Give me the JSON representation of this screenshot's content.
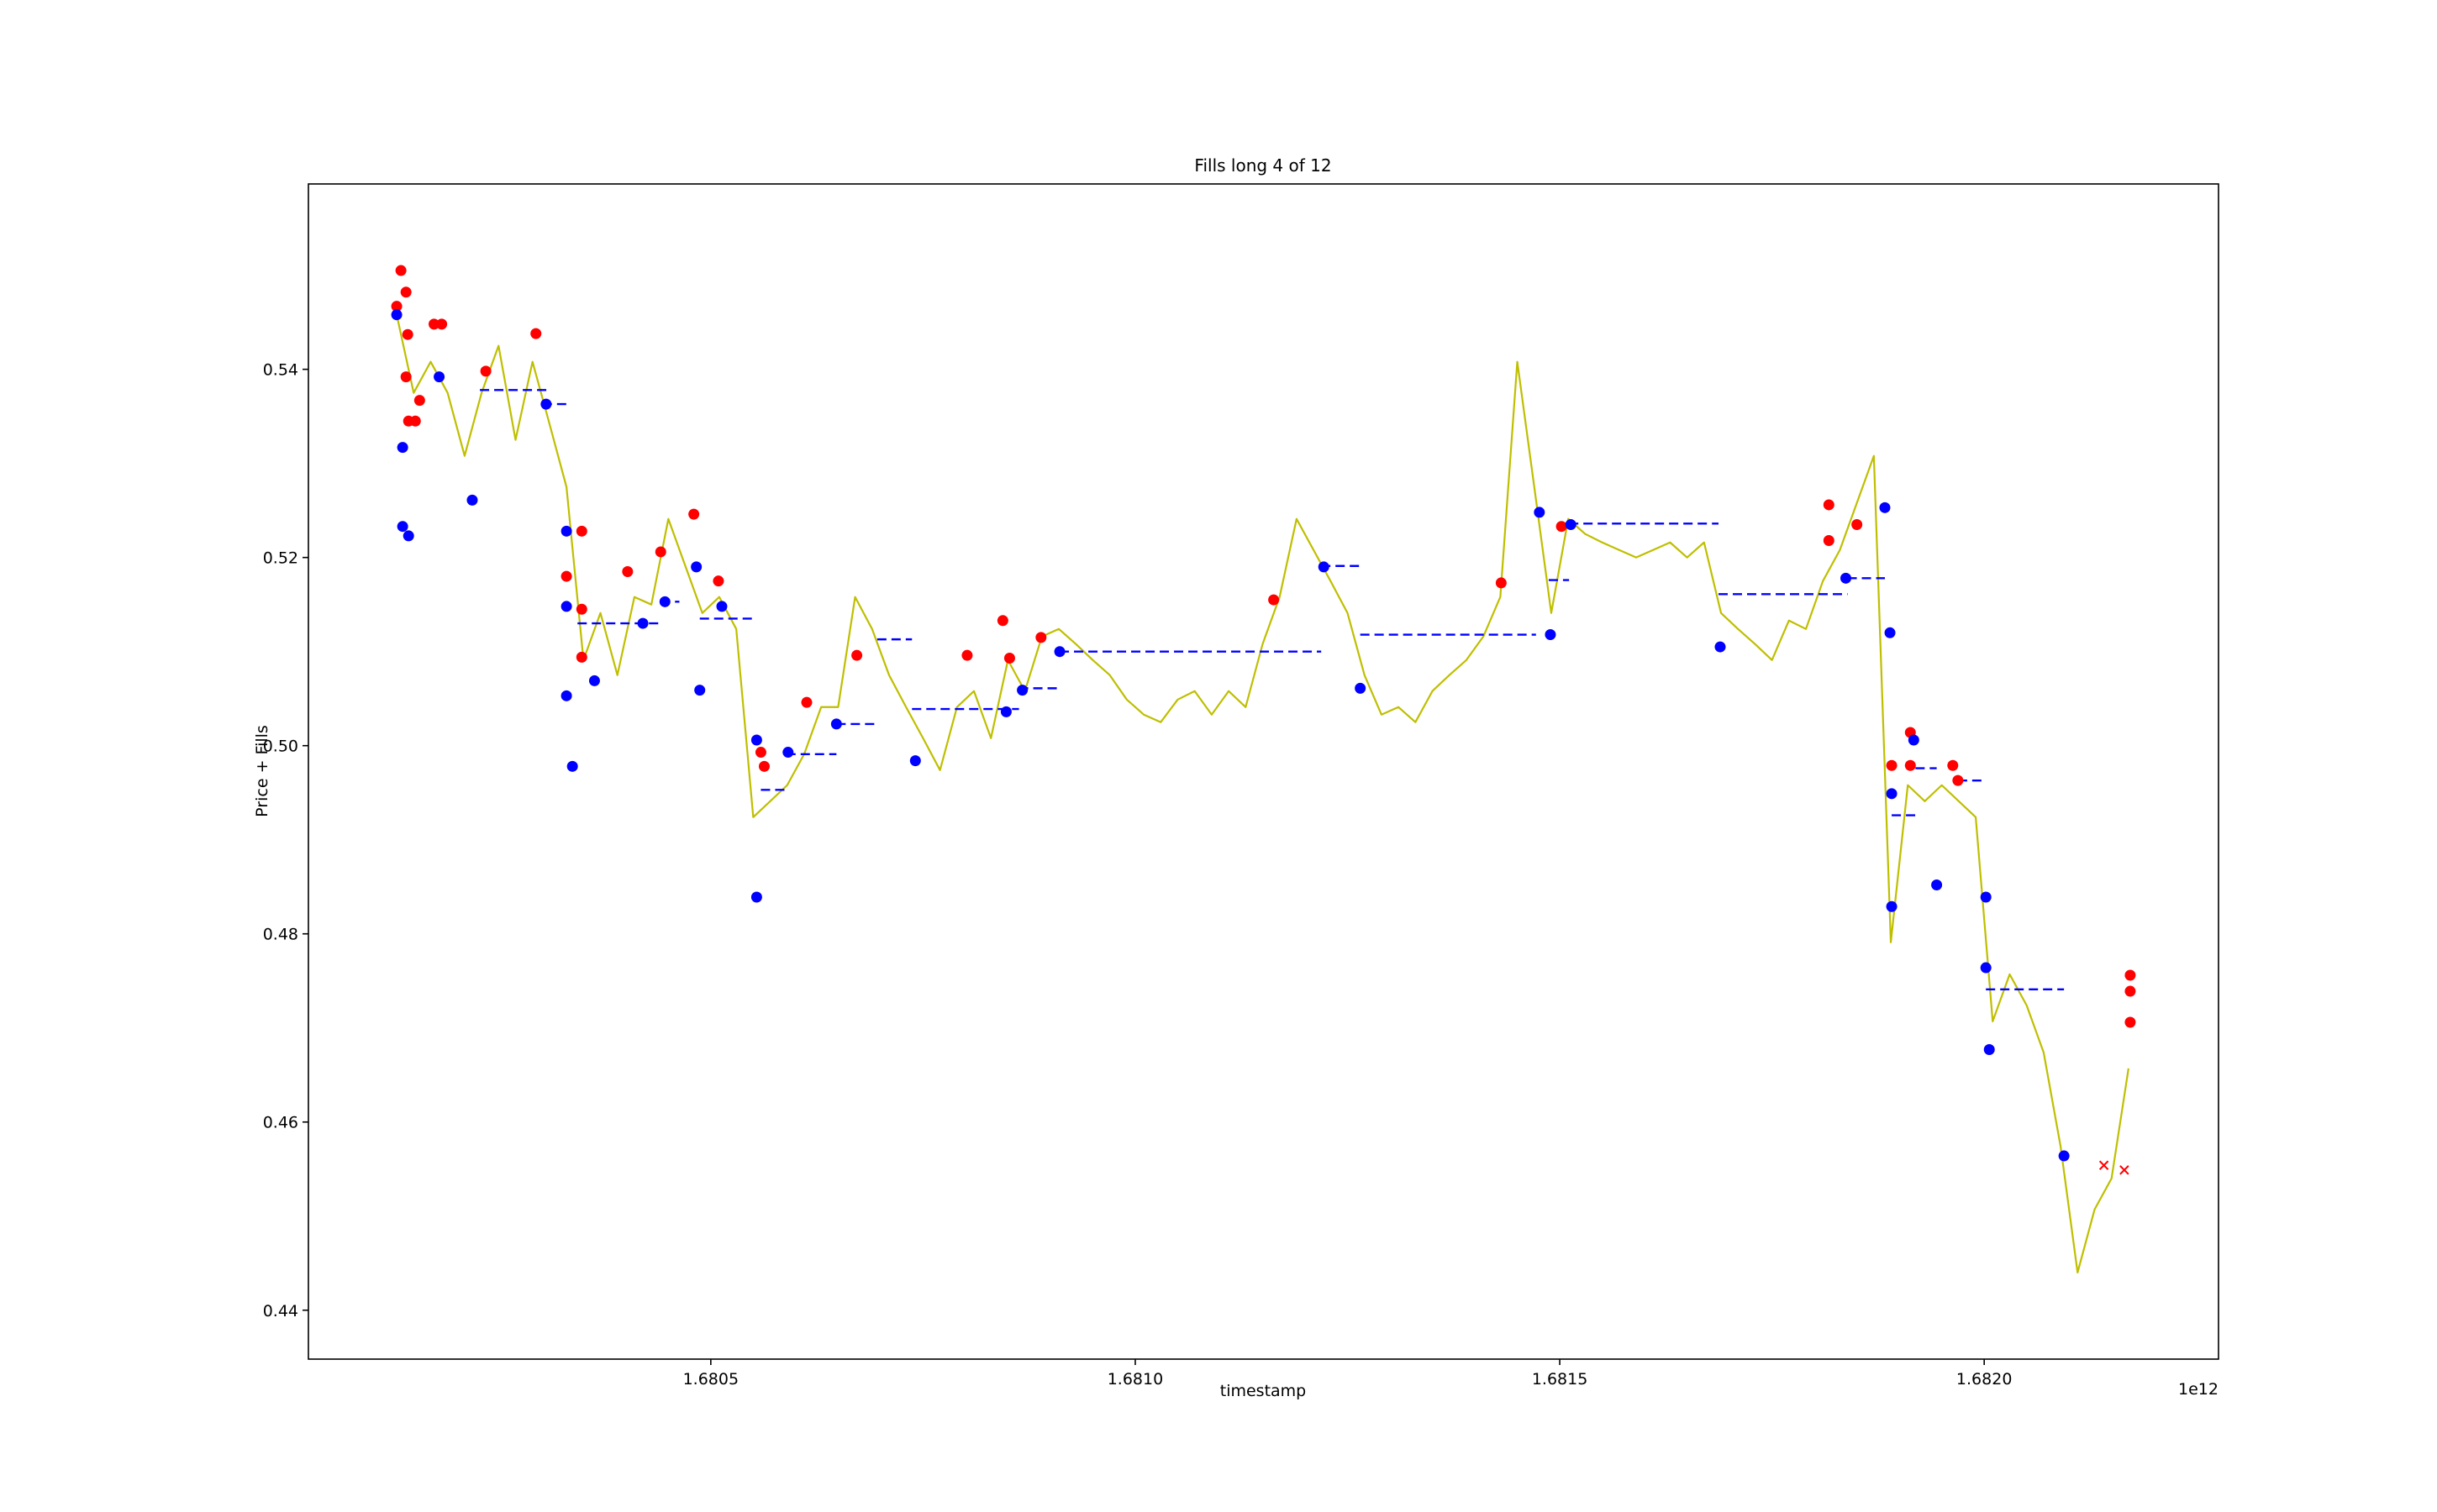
{
  "chart_data": {
    "type": "line",
    "title": "Fills long 4 of 12",
    "xlabel": "timestamp",
    "ylabel": "Price + Fills",
    "x_offset_label": "1e12",
    "xlim": [
      1.680026,
      1.682276
    ],
    "ylim": [
      0.4348,
      0.5597
    ],
    "xticks": [
      1.6805,
      {
        "value": 1.681,
        "label": "1.6810"
      },
      1.6815,
      {
        "value": 1.682,
        "label": "1.6820"
      }
    ],
    "yticks": [
      0.44,
      0.46,
      0.48,
      {
        "value": 0.5,
        "label": "0.50"
      },
      0.52,
      0.54
    ],
    "series": [
      {
        "color": "#bfbf00",
        "x": [
          1.68013,
          1.68015,
          1.68017,
          1.68019,
          1.68021,
          1.68023,
          1.68025,
          1.68027,
          1.68029,
          1.68031,
          1.68033,
          1.68035,
          1.68037,
          1.68039,
          1.68041,
          1.68043,
          1.68045,
          1.68047,
          1.68049,
          1.68051,
          1.68053,
          1.68055,
          1.68057,
          1.68059,
          1.68061,
          1.68063,
          1.68065,
          1.68067,
          1.68069,
          1.68071,
          1.68073,
          1.68075,
          1.68077,
          1.68079,
          1.68081,
          1.68083,
          1.68085,
          1.68087,
          1.68089,
          1.68091,
          1.68093,
          1.68095,
          1.68097,
          1.68099,
          1.68101,
          1.68103,
          1.68105,
          1.68107,
          1.68109,
          1.68111,
          1.68113,
          1.68115,
          1.68117,
          1.68119,
          1.68121,
          1.68123,
          1.68125,
          1.68127,
          1.68129,
          1.68131,
          1.68133,
          1.68135,
          1.68137,
          1.68139,
          1.68141,
          1.68143,
          1.68145,
          1.68147,
          1.68149,
          1.68151,
          1.68153,
          1.68155,
          1.68157,
          1.68159,
          1.68161,
          1.68163,
          1.68165,
          1.68167,
          1.68169,
          1.68171,
          1.68173,
          1.68175,
          1.68177,
          1.68179,
          1.68181,
          1.68183,
          1.68185,
          1.68187,
          1.68189,
          1.68191,
          1.68193,
          1.68195,
          1.68197,
          1.68199,
          1.68201,
          1.68203,
          1.68205,
          1.68207,
          1.68209,
          1.68211,
          1.68213,
          1.68215,
          1.68217
        ],
        "values": [
          0.5458,
          0.5375,
          0.5408,
          0.5375,
          0.5308,
          0.5375,
          0.5425,
          0.5325,
          0.5408,
          0.5342,
          0.5275,
          0.5091,
          0.5141,
          0.5075,
          0.5158,
          0.515,
          0.5241,
          0.5191,
          0.5141,
          0.5158,
          0.5124,
          0.4924,
          0.4941,
          0.4958,
          0.4991,
          0.5041,
          0.5041,
          0.5158,
          0.5124,
          0.5075,
          0.5041,
          0.5008,
          0.4974,
          0.5041,
          0.5058,
          0.5008,
          0.5091,
          0.5058,
          0.5116,
          0.5124,
          0.5108,
          0.5091,
          0.5075,
          0.5049,
          0.5033,
          0.5025,
          0.5049,
          0.5058,
          0.5033,
          0.5058,
          0.5041,
          0.5108,
          0.5158,
          0.5241,
          0.5208,
          0.5175,
          0.5141,
          0.5075,
          0.5033,
          0.5041,
          0.5025,
          0.5058,
          0.5075,
          0.5091,
          0.5116,
          0.5158,
          0.5408,
          0.5275,
          0.5141,
          0.5241,
          0.5225,
          0.5216,
          0.5208,
          0.52,
          0.5208,
          0.5216,
          0.52,
          0.5216,
          0.5141,
          0.5124,
          0.5108,
          0.5091,
          0.5133,
          0.5124,
          0.5175,
          0.5208,
          0.5258,
          0.5308,
          0.4791,
          0.4958,
          0.4941,
          0.4958,
          0.4941,
          0.4924,
          0.4707,
          0.4757,
          0.4724,
          0.4674,
          0.4574,
          0.444,
          0.4507,
          0.454,
          0.4657
        ]
      }
    ],
    "scatter": [
      {
        "color": "#ff0000",
        "marker": "o",
        "x": [
          1.68013,
          1.680135,
          1.680141,
          1.680143,
          1.680141,
          1.680144,
          1.680152,
          1.680157,
          1.680174,
          1.680183,
          1.680235,
          1.680294,
          1.68033,
          1.680348,
          1.680348,
          1.680348,
          1.680402,
          1.680441,
          1.68048,
          1.680509,
          1.680559,
          1.680563,
          1.680613,
          1.680672,
          1.680802,
          1.680844,
          1.680852,
          1.680889,
          1.681163,
          1.681431,
          1.681502,
          1.681817,
          1.681817,
          1.68185,
          1.681891,
          1.681913,
          1.681913,
          1.681963,
          1.681969,
          1.682172,
          1.682172,
          1.682172
        ],
        "values": [
          0.5467,
          0.5505,
          0.5482,
          0.5437,
          0.5392,
          0.5345,
          0.5345,
          0.5367,
          0.5448,
          0.5448,
          0.5398,
          0.5438,
          0.518,
          0.5228,
          0.5145,
          0.5094,
          0.5185,
          0.5206,
          0.5246,
          0.5175,
          0.4993,
          0.4978,
          0.5046,
          0.5096,
          0.5096,
          0.5133,
          0.5093,
          0.5115,
          0.5155,
          0.5173,
          0.5233,
          0.5256,
          0.5218,
          0.5235,
          0.4979,
          0.5014,
          0.4979,
          0.4979,
          0.4963,
          0.4756,
          0.4739,
          0.4706
        ]
      },
      {
        "color": "#0000ff",
        "marker": "o",
        "x": [
          1.68013,
          1.680137,
          1.680137,
          1.680144,
          1.68018,
          1.680219,
          1.680306,
          1.68033,
          1.68033,
          1.68033,
          1.680337,
          1.680363,
          1.68042,
          1.680446,
          1.680483,
          1.680487,
          1.680513,
          1.680554,
          1.680554,
          1.680591,
          1.680648,
          1.680741,
          1.680848,
          1.680867,
          1.680911,
          1.681222,
          1.681265,
          1.681476,
          1.681489,
          1.681513,
          1.681689,
          1.681837,
          1.681883,
          1.681889,
          1.681891,
          1.681891,
          1.681917,
          1.681944,
          1.682002,
          1.682002,
          1.682006,
          1.682094
        ],
        "values": [
          0.5458,
          0.5317,
          0.5233,
          0.5223,
          0.5392,
          0.5261,
          0.5363,
          0.5228,
          0.5148,
          0.5053,
          0.4978,
          0.5069,
          0.513,
          0.5153,
          0.519,
          0.5059,
          0.5148,
          0.5006,
          0.4839,
          0.4993,
          0.5023,
          0.4984,
          0.5036,
          0.5059,
          0.51,
          0.519,
          0.5061,
          0.5248,
          0.5118,
          0.5235,
          0.5105,
          0.5178,
          0.5253,
          0.512,
          0.4949,
          0.4829,
          0.5006,
          0.4852,
          0.4839,
          0.4764,
          0.4677,
          0.4564
        ]
      },
      {
        "color": "#ff0000",
        "marker": "x",
        "x": [
          1.682141,
          1.682165
        ],
        "values": [
          0.4554,
          0.4549
        ]
      }
    ],
    "levels": {
      "color": "#0000ff",
      "x0": [
        1.680228,
        1.680302,
        1.680343,
        1.680441,
        1.680487,
        1.680559,
        1.680589,
        1.680648,
        1.680696,
        1.680737,
        1.680863,
        1.680911,
        1.681219,
        1.681265,
        1.681487,
        1.681511,
        1.681687,
        1.681839,
        1.681891,
        1.681919,
        1.681969,
        1.682002
      ],
      "x1": [
        1.680307,
        1.68033,
        1.680441,
        1.680463,
        1.680552,
        1.680589,
        1.680648,
        1.680696,
        1.680737,
        1.680863,
        1.680911,
        1.681219,
        1.681265,
        1.681472,
        1.681511,
        1.681687,
        1.681839,
        1.681883,
        1.681919,
        1.681944,
        1.682002,
        1.682094
      ],
      "values": [
        0.5378,
        0.5363,
        0.513,
        0.5153,
        0.5135,
        0.4953,
        0.4991,
        0.5023,
        0.5113,
        0.5039,
        0.5061,
        0.51,
        0.5191,
        0.5118,
        0.5176,
        0.5236,
        0.5161,
        0.5178,
        0.4926,
        0.4976,
        0.4963,
        0.4741
      ]
    }
  }
}
